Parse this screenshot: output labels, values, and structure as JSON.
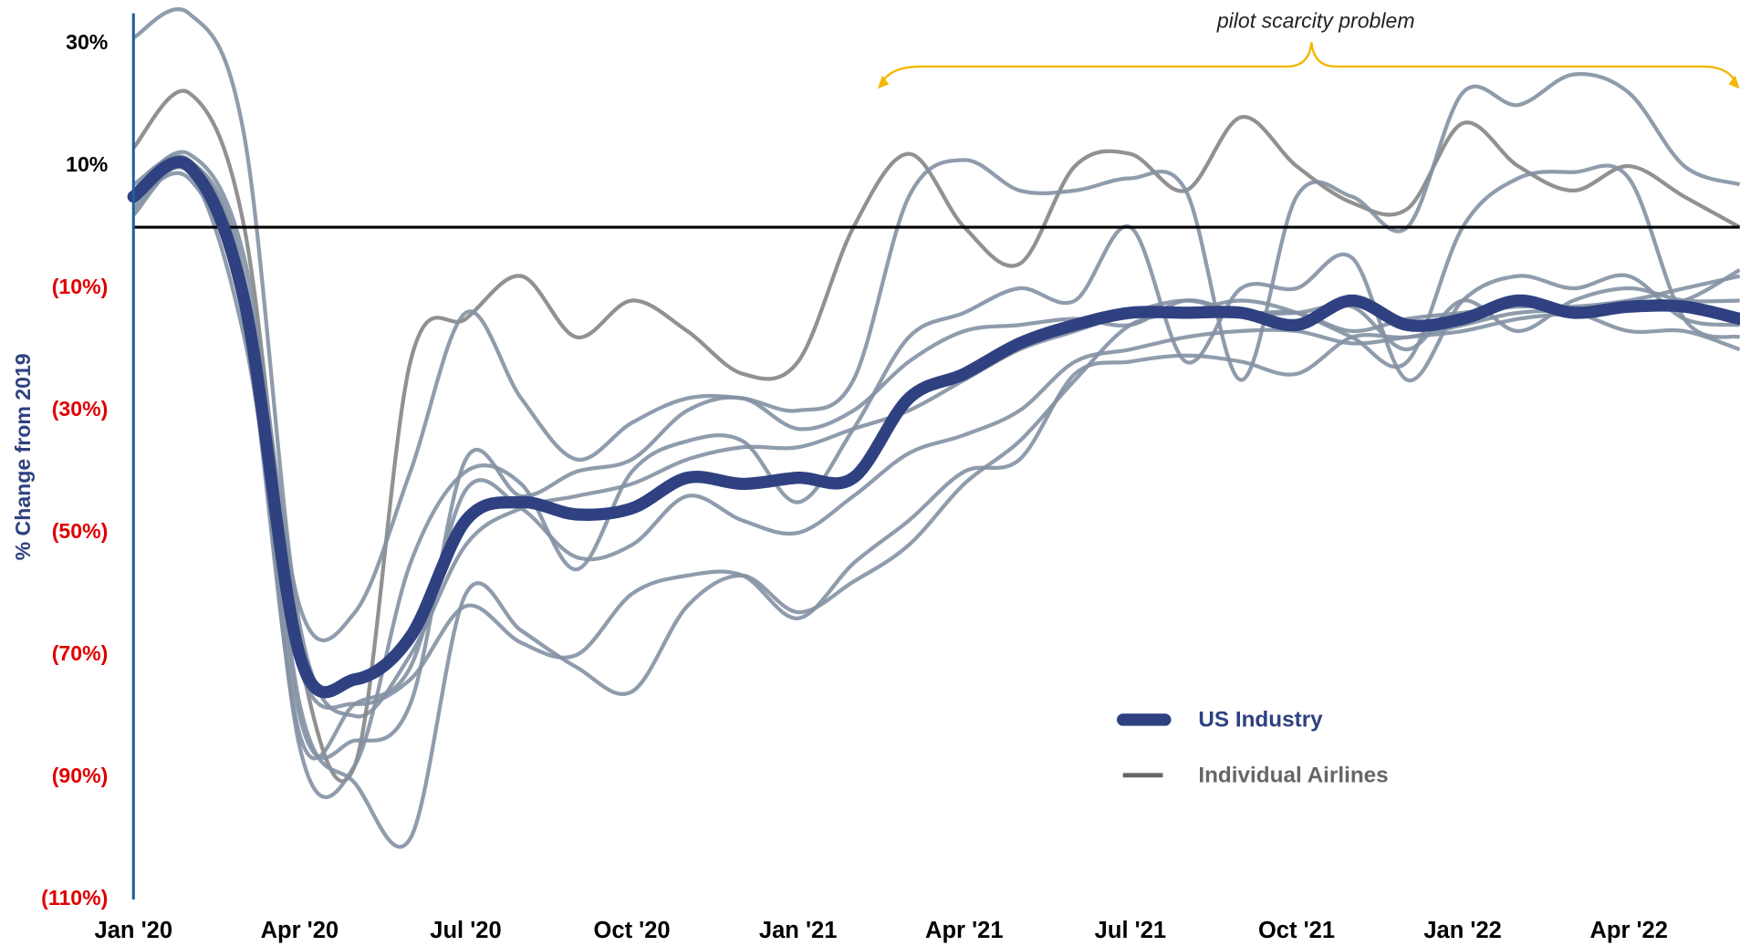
{
  "chart_data": {
    "type": "line",
    "annotation": "pilot scarcity problem",
    "y_label": "% Change from 2019",
    "categories": [
      "Jan '20",
      null,
      null,
      "Apr '20",
      null,
      null,
      "Jul '20",
      null,
      null,
      "Oct '20",
      null,
      null,
      "Jan '21",
      null,
      null,
      "Apr '21",
      null,
      null,
      "Jul '21",
      null,
      null,
      "Oct '21",
      null,
      null,
      "Jan '22",
      null,
      null,
      "Apr '22",
      null,
      null
    ],
    "ylim": [
      -110,
      35
    ],
    "yticks": [
      {
        "value": 30,
        "label": "30%"
      },
      {
        "value": 10,
        "label": "10%"
      },
      {
        "value": -10,
        "label": "(10%)"
      },
      {
        "value": -30,
        "label": "(30%)"
      },
      {
        "value": -50,
        "label": "(50%)"
      },
      {
        "value": -70,
        "label": "(70%)"
      },
      {
        "value": -90,
        "label": "(90%)"
      },
      {
        "value": -110,
        "label": "(110%)"
      }
    ],
    "positive_tick_color": "#000000",
    "negative_tick_color": "#e00000",
    "reference_line": 0,
    "series": [
      {
        "name": "US Industry",
        "color": "#2f4181",
        "values": [
          5,
          10,
          -12,
          -70,
          -74,
          -67,
          -48,
          -45,
          -47,
          -46,
          -41,
          -42,
          -41,
          -41,
          -28,
          -24,
          -19,
          -16,
          -14,
          -14,
          -14,
          -16,
          -12,
          -16,
          -15,
          -12,
          -14,
          -13,
          -13,
          -15
        ]
      },
      {
        "name": "Individual Airlines",
        "color": "#666666",
        "lines": [
          {
            "color": "#8391a3",
            "values": [
              31,
              35,
              15,
              -65,
              -80,
              -70,
              -52,
              -46,
              -44,
              -42,
              -38,
              -36,
              -36,
              -33,
              -30,
              -25,
              -20,
              -17,
              -14,
              -12,
              -14,
              -14,
              -17,
              -15,
              -14,
              -13,
              -13,
              -12,
              -10,
              -8
            ]
          },
          {
            "color": "#858585",
            "values": [
              13,
              22,
              0,
              -70,
              -88,
              -22,
              -15,
              -8,
              -18,
              -12,
              -17,
              -24,
              -22,
              0,
              12,
              0,
              -6,
              10,
              12,
              6,
              18,
              10,
              4,
              3,
              17,
              10,
              6,
              10,
              5,
              0
            ]
          },
          {
            "color": "#8391a3",
            "values": [
              6,
              12,
              -5,
              -62,
              -63,
              -40,
              -14,
              -28,
              -38,
              -32,
              -28,
              -28,
              -30,
              -25,
              5,
              11,
              6,
              6,
              8,
              6,
              -25,
              5,
              5,
              0,
              22,
              20,
              25,
              22,
              10,
              7
            ]
          },
          {
            "color": "#8391a3",
            "values": [
              2,
              10,
              -10,
              -85,
              -88,
              -55,
              -40,
              -42,
              -56,
              -40,
              -35,
              -35,
              -45,
              -33,
              -18,
              -14,
              -10,
              -12,
              0,
              -22,
              -10,
              -10,
              -5,
              -25,
              -12,
              -8,
              -10,
              -8,
              -15,
              -16
            ]
          },
          {
            "color": "#8391a3",
            "values": [
              7,
              11,
              -8,
              -78,
              -91,
              -100,
              -60,
              -66,
              -72,
              -76,
              -62,
              -57,
              -63,
              -58,
              -52,
              -42,
              -35,
              -25,
              -16,
              -14,
              -12,
              -14,
              -18,
              -22,
              0,
              8,
              9,
              8,
              -15,
              -18
            ]
          },
          {
            "color": "#8391a3",
            "values": [
              4,
              8,
              -15,
              -83,
              -78,
              -72,
              -43,
              -46,
              -54,
              -52,
              -44,
              -48,
              -50,
              -44,
              -37,
              -34,
              -30,
              -22,
              -20,
              -18,
              -17,
              -17,
              -19,
              -18,
              -17,
              -15,
              -14,
              -13,
              -12,
              -7
            ]
          },
          {
            "color": "#8391a3",
            "values": [
              3,
              9,
              -18,
              -72,
              -78,
              -74,
              -62,
              -68,
              -70,
              -60,
              -57,
              -57,
              -64,
              -55,
              -48,
              -40,
              -38,
              -24,
              -22,
              -21,
              -22,
              -24,
              -18,
              -18,
              -16,
              -14,
              -14,
              -17,
              -17,
              -20
            ]
          },
          {
            "color": "#8391a3",
            "values": [
              5,
              11,
              -10,
              -80,
              -84,
              -78,
              -38,
              -44,
              -40,
              -38,
              -30,
              -28,
              -33,
              -30,
              -22,
              -17,
              -16,
              -15,
              -16,
              -12,
              -14,
              -14,
              -13,
              -20,
              -12,
              -17,
              -12,
              -10,
              -12,
              -12
            ]
          }
        ]
      }
    ]
  }
}
